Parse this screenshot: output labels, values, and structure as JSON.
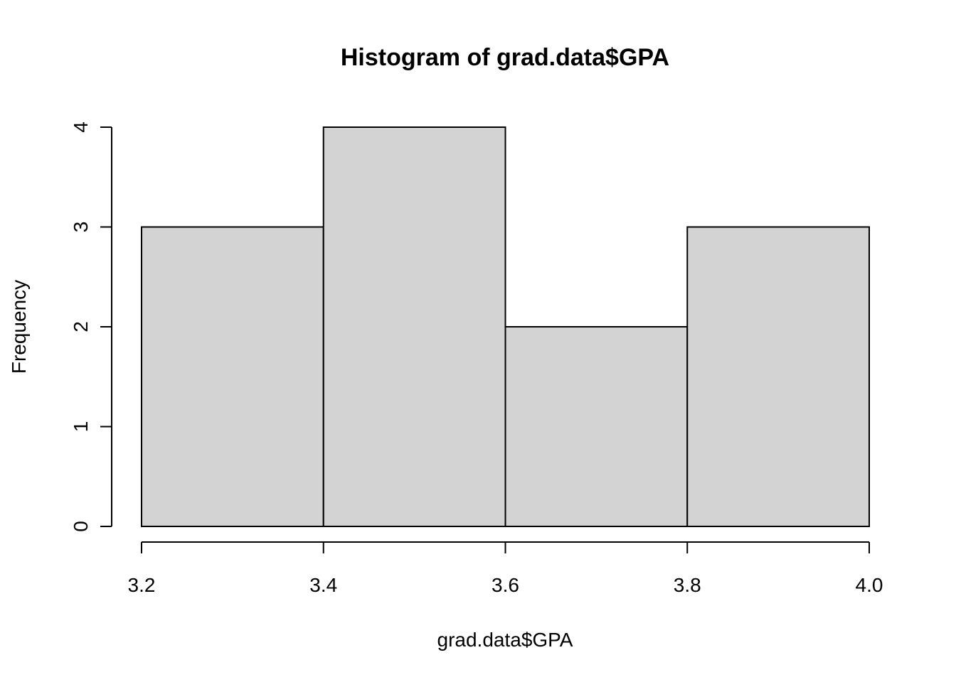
{
  "chart_data": {
    "type": "bar",
    "title": "Histogram of grad.data$GPA",
    "xlabel": "grad.data$GPA",
    "ylabel": "Frequency",
    "bins": [
      {
        "start": 3.2,
        "end": 3.4,
        "count": 3
      },
      {
        "start": 3.4,
        "end": 3.6,
        "count": 4
      },
      {
        "start": 3.6,
        "end": 3.8,
        "count": 2
      },
      {
        "start": 3.8,
        "end": 4.0,
        "count": 3
      }
    ],
    "xlim": [
      3.2,
      4.0
    ],
    "ylim": [
      0,
      4
    ],
    "xticks": [
      "3.2",
      "3.4",
      "3.6",
      "3.8",
      "4.0"
    ],
    "yticks": [
      "0",
      "1",
      "2",
      "3",
      "4"
    ],
    "grid": false,
    "bar_color": "#d3d3d3",
    "border_color": "#000000"
  }
}
